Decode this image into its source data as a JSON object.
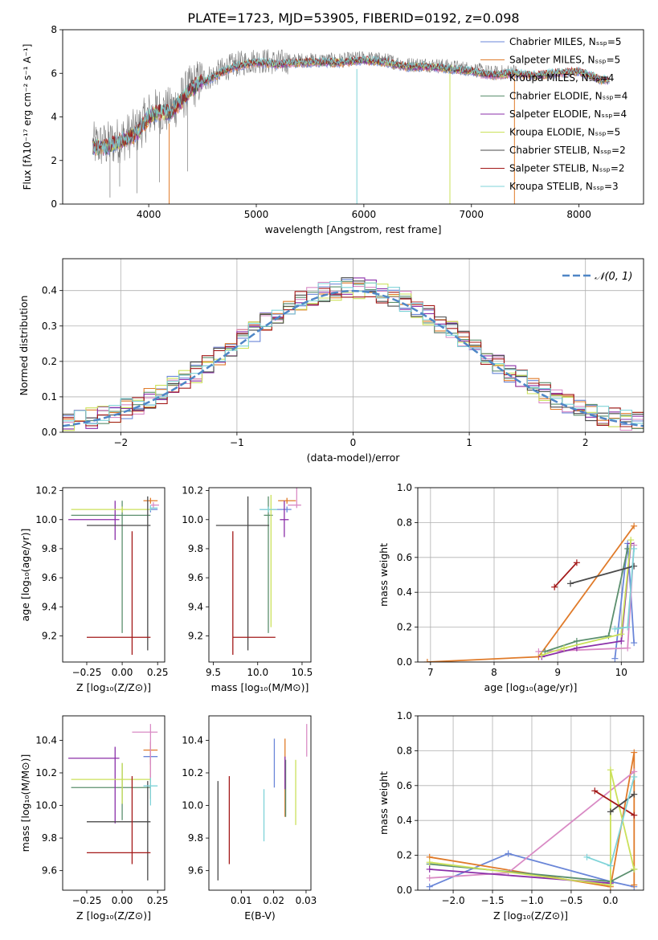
{
  "title": "PLATE=1723, MJD=53905, FIBERID=0192, z=0.098",
  "colors": [
    "#6a86d8",
    "#e07b2a",
    "#d98bc5",
    "#5b8f6e",
    "#8b2fa8",
    "#cbe15a",
    "#4a4a4a",
    "#a31818",
    "#7fd3d8"
  ],
  "chart_data": [
    {
      "id": "spectrum",
      "type": "line",
      "xlabel": "wavelength [Angstrom, rest frame]",
      "ylabel": "Flux [fλ10⁻¹⁷ erg cm⁻² s⁻¹ A⁻¹]",
      "xlim": [
        3200,
        8600
      ],
      "ylim": [
        0,
        8
      ],
      "xticks": [
        4000,
        5000,
        6000,
        7000,
        8000
      ],
      "yticks": [
        0,
        2,
        4,
        6,
        8
      ],
      "legend_position": "upper-right",
      "legend": [
        "Chabrier MILES, N_SSP=5",
        "Salpeter MILES, N_SSP=5",
        "Kroupa MILES, N_SSP=4",
        "Chabrier ELODIE, N_SSP=4",
        "Salpeter ELODIE, N_SSP=4",
        "Kroupa ELODIE, N_SSP=5",
        "Chabrier STELIB, N_SSP=2",
        "Salpeter STELIB, N_SSP=2",
        "Kroupa STELIB, N_SSP=3"
      ],
      "series": [
        {
          "kind": "data",
          "x": [
            3500,
            3600,
            3700,
            3800,
            3900,
            4000,
            4100,
            4200,
            4300,
            4400,
            4500,
            4600,
            4700,
            4800,
            4900,
            5000,
            5200,
            5400,
            5600,
            5800,
            6000,
            6200,
            6400,
            6600,
            6800,
            7000,
            7200,
            7400,
            7600,
            7800,
            8000,
            8200
          ],
          "y": [
            2.7,
            2.7,
            2.9,
            3.1,
            3.4,
            4.1,
            4.3,
            4.3,
            4.8,
            5.4,
            5.7,
            5.9,
            6.2,
            6.4,
            6.5,
            6.6,
            6.5,
            6.6,
            6.6,
            6.6,
            6.7,
            6.6,
            6.4,
            6.4,
            6.3,
            6.2,
            6.0,
            6.1,
            6.0,
            6.1,
            6.2,
            5.8
          ]
        },
        {
          "kind": "model",
          "x": [
            3500,
            3600,
            3700,
            3800,
            3900,
            4000,
            4100,
            4200,
            4300,
            4400,
            4500,
            4600,
            4700,
            4800,
            4900,
            5000,
            5200,
            5400,
            5600,
            5800,
            6000,
            6200,
            6400,
            6600,
            6800,
            7000,
            7200,
            7400,
            7600,
            7800,
            8000,
            8200
          ],
          "y": [
            2.6,
            2.6,
            2.8,
            3.0,
            3.3,
            4.0,
            4.2,
            4.2,
            4.7,
            5.3,
            5.6,
            5.8,
            6.1,
            6.3,
            6.4,
            6.5,
            6.4,
            6.5,
            6.5,
            6.5,
            6.6,
            6.5,
            6.3,
            6.3,
            6.2,
            6.1,
            5.9,
            6.0,
            5.9,
            6.0,
            6.1,
            5.7
          ]
        }
      ],
      "dips": [
        [
          4190,
          3.7
        ],
        [
          5935,
          6.2
        ],
        [
          6800,
          6.0
        ],
        [
          7400,
          6.0
        ]
      ]
    },
    {
      "id": "residuals",
      "type": "histogram",
      "xlabel": "(data-model)/error",
      "ylabel": "Normed distribution",
      "xlim": [
        -2.5,
        2.5
      ],
      "ylim": [
        0,
        0.49
      ],
      "xticks": [
        -2,
        -1,
        0,
        1,
        2
      ],
      "yticks": [
        0.0,
        0.1,
        0.2,
        0.3,
        0.4
      ],
      "legend": [
        "𝒩(0, 1)"
      ],
      "legend_position": "upper-right",
      "reference_curve": {
        "mean": 0,
        "sigma": 1
      }
    },
    {
      "id": "age-vs-Z",
      "type": "errorbar",
      "xlabel": "Z [log₁₀(Z/Z⊙)]",
      "ylabel": "age  [log₁₀(age/yr)]",
      "xlim": [
        -0.42,
        0.3
      ],
      "ylim": [
        9.02,
        10.22
      ],
      "xticks": [
        -0.25,
        0.0,
        0.25
      ],
      "yticks": [
        9.2,
        9.4,
        9.6,
        9.8,
        10.0,
        10.2
      ],
      "points": [
        {
          "x": 0.2,
          "y": 10.07,
          "xerr": [
            0.0,
            0.05
          ],
          "yerr": [
            0.02,
            0.02
          ]
        },
        {
          "x": 0.2,
          "y": 10.13,
          "xerr": [
            0.05,
            0.05
          ],
          "yerr": [
            0.02,
            0.02
          ]
        },
        {
          "x": 0.22,
          "y": 10.1,
          "xerr": [
            0.02,
            0.04
          ],
          "yerr": [
            0.02,
            0.02
          ]
        },
        {
          "x": 0.0,
          "y": 10.03,
          "xerr": [
            0.36,
            0.2
          ],
          "yerr": [
            0.81,
            0.1
          ]
        },
        {
          "x": -0.05,
          "y": 10.0,
          "xerr": [
            0.33,
            0.03
          ],
          "yerr": [
            0.14,
            0.13
          ]
        },
        {
          "x": 0.0,
          "y": 10.07,
          "xerr": [
            0.36,
            0.2
          ],
          "yerr": [
            0.02,
            0.02
          ]
        },
        {
          "x": 0.18,
          "y": 9.96,
          "xerr": [
            0.43,
            0.02
          ],
          "yerr": [
            0.86,
            0.2
          ]
        },
        {
          "x": 0.07,
          "y": 9.19,
          "xerr": [
            0.32,
            0.13
          ],
          "yerr": [
            0.12,
            0.73
          ]
        },
        {
          "x": 0.2,
          "y": 10.08,
          "xerr": [
            0.0,
            0.05
          ],
          "yerr": [
            0.02,
            0.02
          ]
        }
      ]
    },
    {
      "id": "age-vs-mass",
      "type": "errorbar",
      "xlabel": "mass [log₁₀(M/M⊙)]",
      "ylabel": "",
      "xlim": [
        9.45,
        10.6
      ],
      "ylim": [
        9.02,
        10.22
      ],
      "xticks": [
        9.5,
        10.0,
        10.5
      ],
      "yticks": [
        9.2,
        9.4,
        9.6,
        9.8,
        10.0,
        10.2
      ],
      "points": [
        {
          "x": 10.33,
          "y": 10.07,
          "xerr": [
            0.3,
            0.05
          ],
          "yerr": [
            0.02,
            0.02
          ]
        },
        {
          "x": 10.33,
          "y": 10.13,
          "xerr": [
            0.1,
            0.1
          ],
          "yerr": [
            0.02,
            0.02
          ]
        },
        {
          "x": 10.44,
          "y": 10.1,
          "xerr": [
            0.1,
            0.05
          ],
          "yerr": [
            0.02,
            0.15
          ]
        },
        {
          "x": 10.12,
          "y": 10.03,
          "xerr": [
            0.05,
            0.05
          ],
          "yerr": [
            0.81,
            0.13
          ]
        },
        {
          "x": 10.3,
          "y": 10.0,
          "xerr": [
            0.05,
            0.05
          ],
          "yerr": [
            0.12,
            0.13
          ]
        },
        {
          "x": 10.15,
          "y": 10.07,
          "xerr": [
            0.05,
            0.05
          ],
          "yerr": [
            0.81,
            0.1
          ]
        },
        {
          "x": 9.89,
          "y": 9.96,
          "xerr": [
            0.36,
            0.24
          ],
          "yerr": [
            0.86,
            0.2
          ]
        },
        {
          "x": 9.72,
          "y": 9.19,
          "xerr": [
            0.0,
            0.48
          ],
          "yerr": [
            0.12,
            0.73
          ]
        },
        {
          "x": 10.12,
          "y": 10.07,
          "xerr": [
            0.1,
            0.1
          ],
          "yerr": [
            0.02,
            0.02
          ]
        }
      ]
    },
    {
      "id": "massweight-vs-age",
      "type": "line",
      "xlabel": "age  [log₁₀(age/yr)]",
      "ylabel": "mass weight",
      "xlim": [
        6.8,
        10.35
      ],
      "ylim": [
        0,
        1.0
      ],
      "xticks": [
        7,
        8,
        9,
        10
      ],
      "yticks": [
        0.0,
        0.2,
        0.4,
        0.6,
        0.8,
        1.0
      ],
      "series": [
        {
          "x": [
            9.9,
            10.1,
            10.2
          ],
          "y": [
            0.02,
            0.68,
            0.11
          ]
        },
        {
          "x": [
            6.95,
            8.7,
            10.2
          ],
          "y": [
            0.0,
            0.03,
            0.78
          ]
        },
        {
          "x": [
            8.7,
            10.1,
            10.2
          ],
          "y": [
            0.06,
            0.08,
            0.67
          ]
        },
        {
          "x": [
            8.8,
            9.3,
            9.8,
            10.1
          ],
          "y": [
            0.06,
            0.12,
            0.15,
            0.65
          ]
        },
        {
          "x": [
            8.75,
            9.3,
            10.0,
            10.15
          ],
          "y": [
            0.03,
            0.08,
            0.12,
            0.68
          ]
        },
        {
          "x": [
            8.75,
            9.1,
            10.0,
            10.15
          ],
          "y": [
            0.04,
            0.08,
            0.16,
            0.7
          ]
        },
        {
          "x": [
            9.2,
            10.2
          ],
          "y": [
            0.45,
            0.55
          ]
        },
        {
          "x": [
            8.95,
            9.3
          ],
          "y": [
            0.43,
            0.57
          ]
        },
        {
          "x": [
            9.9,
            10.1,
            10.2
          ],
          "y": [
            0.19,
            0.2,
            0.65
          ]
        }
      ]
    },
    {
      "id": "mass-vs-Z",
      "type": "errorbar",
      "xlabel": "Z [log₁₀(Z/Z⊙)]",
      "ylabel": "mass [log₁₀(M/M⊙)]",
      "xlim": [
        -0.42,
        0.3
      ],
      "ylim": [
        9.48,
        10.55
      ],
      "xticks": [
        -0.25,
        0.0,
        0.25
      ],
      "yticks": [
        9.6,
        9.8,
        10.0,
        10.2,
        10.4
      ],
      "points": [
        {
          "x": 0.2,
          "y": 10.3,
          "xerr": [
            0.05,
            0.05
          ],
          "yerr": [
            0.05,
            0.05
          ]
        },
        {
          "x": 0.2,
          "y": 10.34,
          "xerr": [
            0.05,
            0.05
          ],
          "yerr": [
            0.3,
            0.05
          ]
        },
        {
          "x": 0.2,
          "y": 10.45,
          "xerr": [
            0.13,
            0.05
          ],
          "yerr": [
            0.3,
            0.05
          ]
        },
        {
          "x": 0.0,
          "y": 10.11,
          "xerr": [
            0.36,
            0.2
          ],
          "yerr": [
            0.2,
            0.15
          ]
        },
        {
          "x": -0.05,
          "y": 10.29,
          "xerr": [
            0.33,
            0.03
          ],
          "yerr": [
            0.4,
            0.07
          ]
        },
        {
          "x": 0.0,
          "y": 10.16,
          "xerr": [
            0.36,
            0.2
          ],
          "yerr": [
            0.15,
            0.1
          ]
        },
        {
          "x": 0.18,
          "y": 9.9,
          "xerr": [
            0.43,
            0.02
          ],
          "yerr": [
            0.36,
            0.25
          ]
        },
        {
          "x": 0.07,
          "y": 9.71,
          "xerr": [
            0.32,
            0.13
          ],
          "yerr": [
            0.07,
            0.47
          ]
        },
        {
          "x": 0.2,
          "y": 10.12,
          "xerr": [
            0.05,
            0.05
          ],
          "yerr": [
            0.12,
            0.05
          ]
        }
      ]
    },
    {
      "id": "mass-vs-EBV",
      "type": "errorbar",
      "xlabel": "E(B-V)",
      "ylabel": "",
      "xlim": [
        0.0,
        0.0315
      ],
      "ylim": [
        9.48,
        10.55
      ],
      "xticks": [
        0.01,
        0.02,
        0.03
      ],
      "yticks": [
        9.6,
        9.8,
        10.0,
        10.2,
        10.4
      ],
      "points": [
        {
          "x": 0.0202,
          "y": 10.25,
          "xerr": [
            0,
            0
          ],
          "yerr": [
            0.14,
            0.16
          ]
        },
        {
          "x": 0.0235,
          "y": 10.3,
          "xerr": [
            0,
            0
          ],
          "yerr": [
            0.37,
            0.11
          ]
        },
        {
          "x": 0.0302,
          "y": 10.42,
          "xerr": [
            0,
            0
          ],
          "yerr": [
            0.12,
            0.08
          ]
        },
        {
          "x": 0.0237,
          "y": 10.13,
          "xerr": [
            0,
            0
          ],
          "yerr": [
            0.2,
            0.15
          ]
        },
        {
          "x": 0.0235,
          "y": 10.2,
          "xerr": [
            0,
            0
          ],
          "yerr": [
            0.1,
            0.1
          ]
        },
        {
          "x": 0.0268,
          "y": 10.12,
          "xerr": [
            0,
            0
          ],
          "yerr": [
            0.24,
            0.16
          ]
        },
        {
          "x": 0.0028,
          "y": 9.9,
          "xerr": [
            0,
            0
          ],
          "yerr": [
            0.36,
            0.25
          ]
        },
        {
          "x": 0.0063,
          "y": 9.91,
          "xerr": [
            0,
            0
          ],
          "yerr": [
            0.27,
            0.27
          ]
        },
        {
          "x": 0.017,
          "y": 9.95,
          "xerr": [
            0,
            0
          ],
          "yerr": [
            0.17,
            0.15
          ]
        }
      ]
    },
    {
      "id": "massweight-vs-Z",
      "type": "line",
      "xlabel": "Z [log₁₀(Z/Z⊙)]",
      "ylabel": "mass weight",
      "xlim": [
        -2.45,
        0.42
      ],
      "ylim": [
        0,
        1.0
      ],
      "xticks": [
        -2.0,
        -1.5,
        -1.0,
        -0.5,
        0.0
      ],
      "yticks": [
        0.0,
        0.2,
        0.4,
        0.6,
        0.8,
        1.0
      ],
      "series": [
        {
          "x": [
            -2.3,
            -1.3,
            0.0,
            0.3
          ],
          "y": [
            0.02,
            0.21,
            0.05,
            0.02
          ]
        },
        {
          "x": [
            -2.3,
            0.0,
            0.3,
            0.3
          ],
          "y": [
            0.19,
            0.02,
            0.79,
            0.03
          ]
        },
        {
          "x": [
            -2.3,
            -1.3,
            0.3
          ],
          "y": [
            0.07,
            0.1,
            0.68
          ]
        },
        {
          "x": [
            -2.3,
            0.0,
            0.3
          ],
          "y": [
            0.15,
            0.05,
            0.12
          ]
        },
        {
          "x": [
            -2.3,
            0.0
          ],
          "y": [
            0.12,
            0.04
          ]
        },
        {
          "x": [
            -2.3,
            0.0,
            0.0,
            0.3
          ],
          "y": [
            0.16,
            0.03,
            0.69,
            0.12
          ]
        },
        {
          "x": [
            0.0,
            0.3
          ],
          "y": [
            0.45,
            0.55
          ]
        },
        {
          "x": [
            -0.2,
            0.3
          ],
          "y": [
            0.57,
            0.43
          ]
        },
        {
          "x": [
            -0.3,
            0.0,
            0.3
          ],
          "y": [
            0.19,
            0.14,
            0.65
          ]
        }
      ]
    }
  ]
}
